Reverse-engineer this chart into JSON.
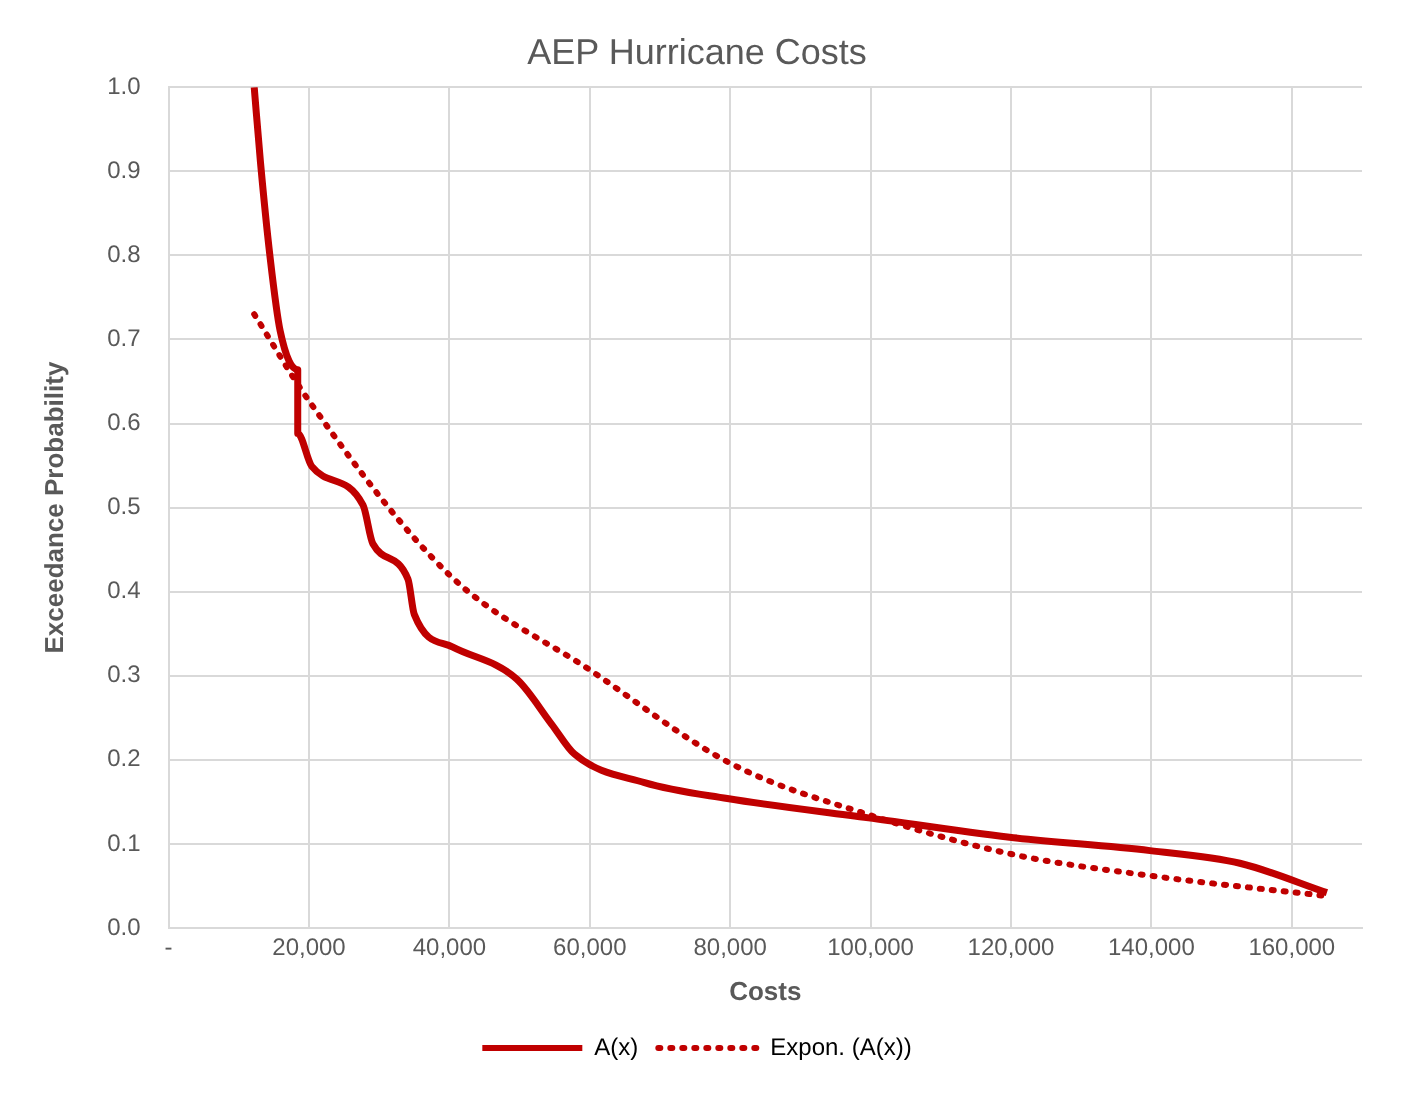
{
  "chart_data": {
    "type": "line",
    "title": "AEP Hurricane Costs",
    "xlabel": "Costs",
    "ylabel": "Exceedance Probability",
    "xlim": [
      0,
      170000
    ],
    "xticks": [
      {
        "value": 0,
        "label": "-"
      },
      {
        "value": 20000,
        "label": "20,000"
      },
      {
        "value": 40000,
        "label": "40,000"
      },
      {
        "value": 60000,
        "label": "60,000"
      },
      {
        "value": 80000,
        "label": "80,000"
      },
      {
        "value": 100000,
        "label": "100,000"
      },
      {
        "value": 120000,
        "label": "120,000"
      },
      {
        "value": 140000,
        "label": "140,000"
      },
      {
        "value": 160000,
        "label": "160,000"
      }
    ],
    "ylim": [
      0,
      1
    ],
    "yticks": [
      {
        "value": 0,
        "label": "0.0"
      },
      {
        "value": 0.1,
        "label": "0.1"
      },
      {
        "value": 0.2,
        "label": "0.2"
      },
      {
        "value": 0.3,
        "label": "0.3"
      },
      {
        "value": 0.4,
        "label": "0.4"
      },
      {
        "value": 0.5,
        "label": "0.5"
      },
      {
        "value": 0.6,
        "label": "0.6"
      },
      {
        "value": 0.7,
        "label": "0.7"
      },
      {
        "value": 0.8,
        "label": "0.8"
      },
      {
        "value": 0.9,
        "label": "0.9"
      },
      {
        "value": 1,
        "label": "1.0"
      }
    ],
    "grid": true,
    "legend": "bottom",
    "marker": "none",
    "series": [
      {
        "name": "A(x)",
        "color": "#c00000",
        "line_style": "solid",
        "x": [
          12200,
          13100,
          14500,
          15900,
          18400,
          18400,
          20400,
          27700,
          29100,
          34100,
          35000,
          40500,
          49600,
          54600,
          57800,
          67800,
          79600,
          99700,
          119800,
          139800,
          152600,
          165000
        ],
        "values": [
          1.0,
          0.91,
          0.795,
          0.71,
          0.664,
          0.588,
          0.549,
          0.503,
          0.457,
          0.415,
          0.373,
          0.334,
          0.296,
          0.242,
          0.207,
          0.173,
          0.154,
          0.131,
          0.108,
          0.092,
          0.077,
          0.042
        ]
      },
      {
        "name": "Expon. (A(x))",
        "color": "#c00000",
        "line_style": "dotted",
        "x": [
          12200,
          20000,
          40000,
          60000,
          80000,
          100000,
          120000,
          140000,
          165000
        ],
        "values": [
          0.73,
          0.627,
          0.42,
          0.307,
          0.196,
          0.134,
          0.088,
          0.062,
          0.038
        ]
      }
    ]
  }
}
